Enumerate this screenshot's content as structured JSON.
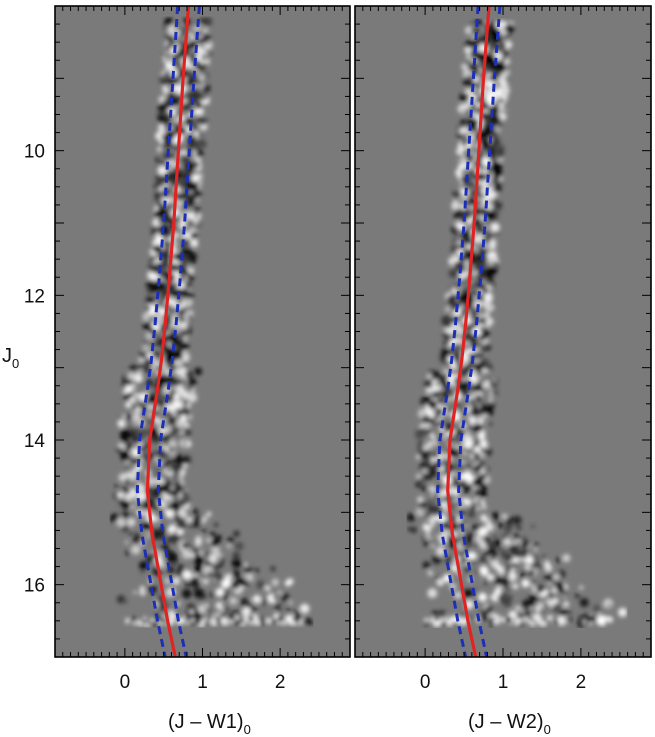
{
  "chart_data": [
    {
      "type": "scatter",
      "panel": "left",
      "xlabel_main": "(J – W1)",
      "xlabel_sub": "0",
      "ylabel_main": "J",
      "ylabel_sub": "0",
      "xlim": [
        -0.9,
        2.9
      ],
      "ylim": [
        17.0,
        8.0
      ],
      "x_ticks": [
        0,
        1,
        2
      ],
      "y_ticks": [
        10,
        12,
        14,
        16
      ],
      "background_color": "#7a7a7a",
      "series": [
        {
          "style": "solid",
          "color": "#e02424",
          "x": [
            0.82,
            0.75,
            0.69,
            0.63,
            0.57,
            0.52,
            0.47,
            0.42,
            0.32,
            0.29,
            0.35,
            0.45,
            0.55,
            0.65
          ],
          "y": [
            8.0,
            9.0,
            10.0,
            11.0,
            11.8,
            12.4,
            12.9,
            13.3,
            14.0,
            14.7,
            15.3,
            15.9,
            16.5,
            17.0
          ]
        },
        {
          "style": "dashed",
          "color": "#1c2fb8",
          "x": [
            0.68,
            0.62,
            0.56,
            0.5,
            0.44,
            0.39,
            0.34,
            0.29,
            0.19,
            0.16,
            0.22,
            0.32,
            0.42,
            0.52
          ],
          "y": [
            8.0,
            9.0,
            10.0,
            11.0,
            11.8,
            12.4,
            12.9,
            13.3,
            14.0,
            14.7,
            15.3,
            15.9,
            16.5,
            17.0
          ]
        },
        {
          "style": "dashed",
          "color": "#1c2fb8",
          "x": [
            0.96,
            0.89,
            0.83,
            0.77,
            0.71,
            0.66,
            0.61,
            0.56,
            0.46,
            0.43,
            0.49,
            0.59,
            0.69,
            0.79
          ],
          "y": [
            8.0,
            9.0,
            10.0,
            11.0,
            11.8,
            12.4,
            12.9,
            13.3,
            14.0,
            14.7,
            15.3,
            15.9,
            16.5,
            17.0
          ]
        }
      ]
    },
    {
      "type": "scatter",
      "panel": "right",
      "xlabel_main": "(J – W2)",
      "xlabel_sub": "0",
      "xlim": [
        -0.9,
        2.9
      ],
      "ylim": [
        17.0,
        8.0
      ],
      "x_ticks": [
        0,
        1,
        2
      ],
      "background_color": "#7a7a7a",
      "series": [
        {
          "style": "solid",
          "color": "#e02424",
          "x": [
            0.82,
            0.75,
            0.69,
            0.63,
            0.57,
            0.52,
            0.47,
            0.42,
            0.32,
            0.29,
            0.35,
            0.45,
            0.55,
            0.65
          ],
          "y": [
            8.0,
            9.0,
            10.0,
            11.0,
            11.8,
            12.4,
            12.9,
            13.3,
            14.0,
            14.7,
            15.3,
            15.9,
            16.5,
            17.0
          ]
        },
        {
          "style": "dashed",
          "color": "#1c2fb8",
          "x": [
            0.68,
            0.62,
            0.56,
            0.5,
            0.44,
            0.39,
            0.34,
            0.29,
            0.19,
            0.16,
            0.22,
            0.32,
            0.42,
            0.52
          ],
          "y": [
            8.0,
            9.0,
            10.0,
            11.0,
            11.8,
            12.4,
            12.9,
            13.3,
            14.0,
            14.7,
            15.3,
            15.9,
            16.5,
            17.0
          ]
        },
        {
          "style": "dashed",
          "color": "#1c2fb8",
          "x": [
            0.96,
            0.89,
            0.83,
            0.77,
            0.71,
            0.66,
            0.61,
            0.56,
            0.46,
            0.43,
            0.49,
            0.59,
            0.69,
            0.79
          ],
          "y": [
            8.0,
            9.0,
            10.0,
            11.0,
            11.8,
            12.4,
            12.9,
            13.3,
            14.0,
            14.7,
            15.3,
            15.9,
            16.5,
            17.0
          ]
        }
      ]
    }
  ]
}
